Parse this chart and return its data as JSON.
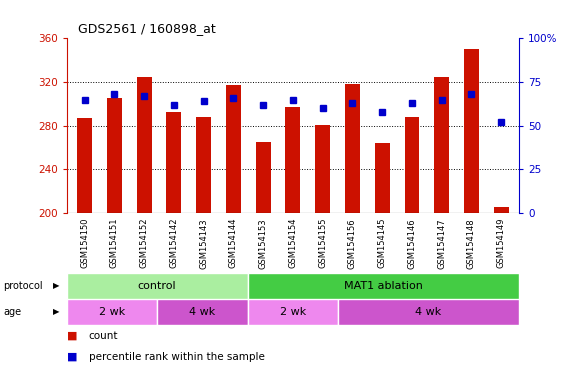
{
  "title": "GDS2561 / 160898_at",
  "samples": [
    "GSM154150",
    "GSM154151",
    "GSM154152",
    "GSM154142",
    "GSM154143",
    "GSM154144",
    "GSM154153",
    "GSM154154",
    "GSM154155",
    "GSM154156",
    "GSM154145",
    "GSM154146",
    "GSM154147",
    "GSM154148",
    "GSM154149"
  ],
  "counts": [
    287,
    305,
    325,
    293,
    288,
    317,
    265,
    297,
    281,
    318,
    264,
    288,
    325,
    350,
    206
  ],
  "percentiles": [
    65,
    68,
    67,
    62,
    64,
    66,
    62,
    65,
    60,
    63,
    58,
    63,
    65,
    68,
    52
  ],
  "ylim_left": [
    200,
    360
  ],
  "ylim_right": [
    0,
    100
  ],
  "yticks_left": [
    200,
    240,
    280,
    320,
    360
  ],
  "yticks_right": [
    0,
    25,
    50,
    75,
    100
  ],
  "bar_color": "#cc1100",
  "dot_color": "#0000cc",
  "bar_width": 0.5,
  "protocol_groups": [
    {
      "label": "control",
      "start": 0,
      "end": 6,
      "color": "#aaeea0"
    },
    {
      "label": "MAT1 ablation",
      "start": 6,
      "end": 15,
      "color": "#44cc44"
    }
  ],
  "age_groups": [
    {
      "label": "2 wk",
      "start": 0,
      "end": 3,
      "color": "#ee88ee"
    },
    {
      "label": "4 wk",
      "start": 3,
      "end": 6,
      "color": "#cc55cc"
    },
    {
      "label": "2 wk",
      "start": 6,
      "end": 9,
      "color": "#ee88ee"
    },
    {
      "label": "4 wk",
      "start": 9,
      "end": 15,
      "color": "#cc55cc"
    }
  ],
  "legend_count_label": "count",
  "legend_pct_label": "percentile rank within the sample",
  "left_axis_color": "#cc1100",
  "right_axis_color": "#0000cc",
  "xticklabel_bg": "#d8d8d8"
}
